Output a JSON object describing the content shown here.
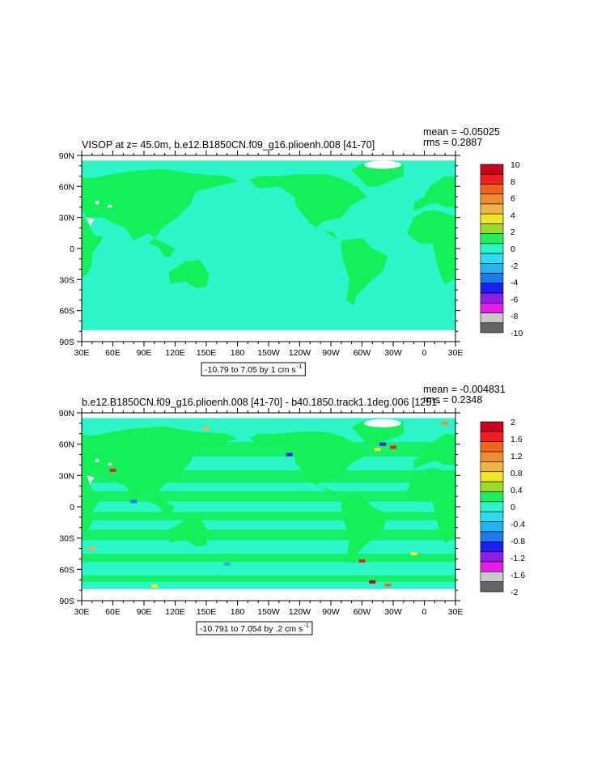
{
  "colors": {
    "land": "#ffffff",
    "ocean_base": "#2df5c8",
    "ocean_band": "#15f05a",
    "frame": "#000000"
  },
  "chart_data": [
    {
      "type": "heatmap",
      "title": "VISOP at z=   45.0m, b.e12.B1850CN.f09_g16.plioenh.008  [41-70]",
      "stats": {
        "mean": "mean = -0.05025",
        "rms": "rms = 0.2887"
      },
      "x_ticks": [
        "30E",
        "60E",
        "90E",
        "120E",
        "150E",
        "180",
        "150W",
        "120W",
        "90W",
        "60W",
        "30W",
        "0",
        "30E"
      ],
      "y_ticks": [
        "90N",
        "60N",
        "30N",
        "0",
        "30S",
        "60S",
        "90S"
      ],
      "range_label": "-10.79 to 7.05 by 1 cm s",
      "range_sup": "-1",
      "colorbar": {
        "labels": [
          "10",
          "8",
          "6",
          "4",
          "2",
          "0",
          "-2",
          "-4",
          "-6",
          "-8",
          "-10"
        ],
        "colors": [
          "#c8001e",
          "#f01e1e",
          "#f0641e",
          "#f08c32",
          "#f0b446",
          "#f0e628",
          "#9bdc28",
          "#1ef05a",
          "#2df5c8",
          "#2ddcf0",
          "#23b4f0",
          "#1e78f0",
          "#1e1ef0",
          "#8c1ee6",
          "#e61ee6",
          "#c8c8c8",
          "#646464"
        ]
      }
    },
    {
      "type": "heatmap",
      "title": "b.e12.B1850CN.f09_g16.plioenh.008  [41-70]  -  b40.1850.track1.1deg.006  [1251-",
      "stats": {
        "mean": "mean = -0.004831",
        "rms": "rms = 0.2348"
      },
      "x_ticks": [
        "30E",
        "60E",
        "90E",
        "120E",
        "150E",
        "180",
        "150W",
        "120W",
        "90W",
        "60W",
        "30W",
        "0",
        "30E"
      ],
      "y_ticks": [
        "90N",
        "60N",
        "30N",
        "0",
        "30S",
        "60S",
        "90S"
      ],
      "range_label": "-10.791 to 7.054 by .2 cm s",
      "range_sup": "-1",
      "colorbar": {
        "labels": [
          "2",
          "1.6",
          "1.2",
          "0.8",
          "0.4",
          "0",
          "-0.4",
          "-0.8",
          "-1.2",
          "-1.6",
          "-2"
        ],
        "colors": [
          "#c8001e",
          "#f01e1e",
          "#f0641e",
          "#f08c32",
          "#f0b446",
          "#f0e628",
          "#9bdc28",
          "#1ef05a",
          "#2df5c8",
          "#2ddcf0",
          "#23b4f0",
          "#1e78f0",
          "#1e1ef0",
          "#8c1ee6",
          "#e61ee6",
          "#c8c8c8",
          "#646464"
        ]
      }
    }
  ]
}
